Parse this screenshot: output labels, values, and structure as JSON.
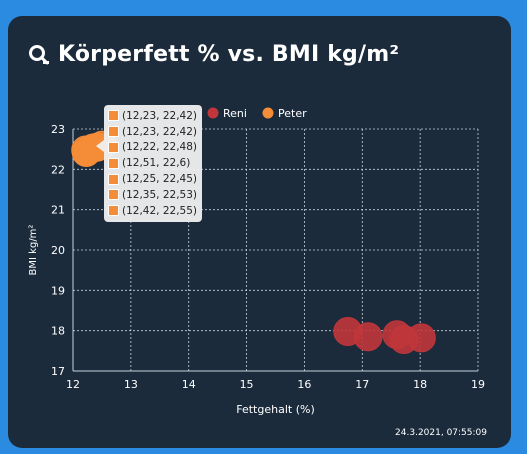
{
  "card": {
    "title": "Körperfett % vs. BMI kg/m²",
    "title_icon": "search-chart-icon",
    "timestamp": "24.3.2021, 07:55:09"
  },
  "tooltip": {
    "color": "#f58c38",
    "items": [
      "(12,23, 22,42)",
      "(12,23, 22,42)",
      "(12,22, 22,48)",
      "(12,51, 22,6)",
      "(12,25, 22,45)",
      "(12,35, 22,53)",
      "(12,42, 22,55)"
    ]
  },
  "chart_data": {
    "type": "scatter",
    "title": "",
    "xlabel": "Fettgehalt (%)",
    "ylabel": "BMI kg/m²",
    "xlim": [
      12,
      19
    ],
    "ylim": [
      17,
      23
    ],
    "xticks": [
      12,
      13,
      14,
      15,
      16,
      17,
      18,
      19
    ],
    "yticks": [
      17,
      18,
      19,
      20,
      21,
      22,
      23
    ],
    "grid": true,
    "legend_position": "top",
    "series": [
      {
        "name": "Reni",
        "color": "#c0363a",
        "points": [
          {
            "x": 16.75,
            "y": 17.98
          },
          {
            "x": 17.1,
            "y": 17.85
          },
          {
            "x": 17.6,
            "y": 17.9
          },
          {
            "x": 17.72,
            "y": 17.78
          },
          {
            "x": 18.02,
            "y": 17.82
          }
        ]
      },
      {
        "name": "Peter",
        "color": "#f58c38",
        "points": [
          {
            "x": 12.23,
            "y": 22.42
          },
          {
            "x": 12.23,
            "y": 22.42
          },
          {
            "x": 12.22,
            "y": 22.48
          },
          {
            "x": 12.51,
            "y": 22.6
          },
          {
            "x": 12.25,
            "y": 22.45
          },
          {
            "x": 12.35,
            "y": 22.53
          },
          {
            "x": 12.42,
            "y": 22.55
          }
        ]
      }
    ]
  }
}
